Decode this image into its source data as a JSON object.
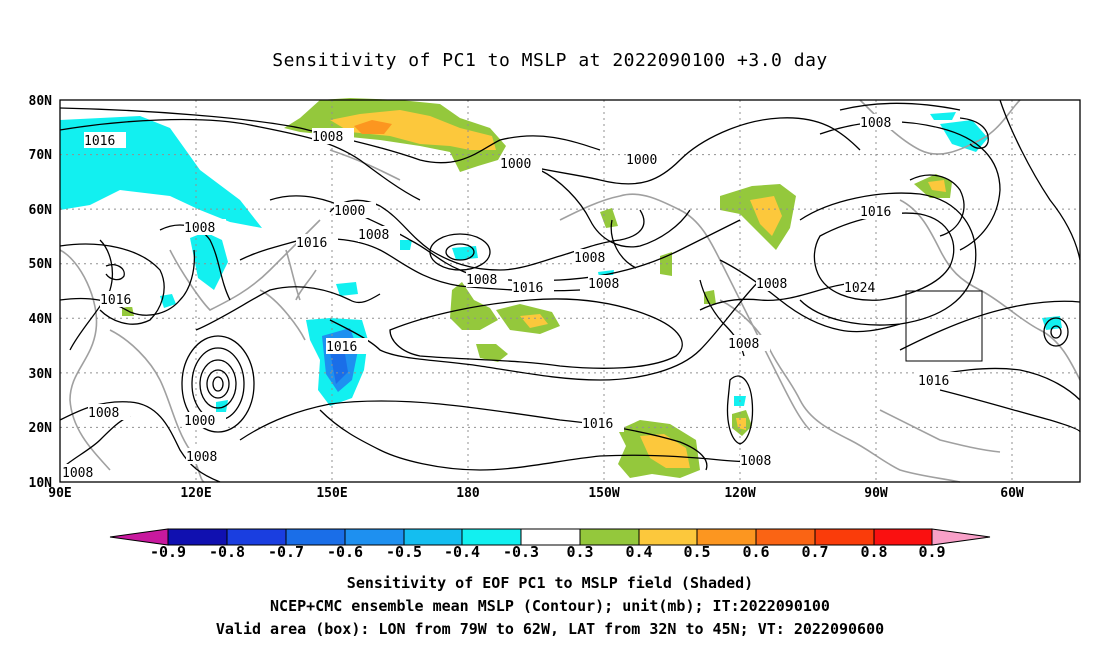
{
  "title": "Sensitivity of PC1 to MSLP at 2022090100 +3.0 day",
  "lat_labels": [
    "80N",
    "70N",
    "60N",
    "50N",
    "40N",
    "30N",
    "20N",
    "10N"
  ],
  "lon_labels": [
    "90E",
    "120E",
    "150E",
    "180",
    "150W",
    "120W",
    "90W",
    "60W"
  ],
  "contour_labels": [
    "1016",
    "1008",
    "1000",
    "1000",
    "1000",
    "1008",
    "1008",
    "1016",
    "1016",
    "1008",
    "1016",
    "1016",
    "1008",
    "1008",
    "1016",
    "1008",
    "1008",
    "1024",
    "1008",
    "1016",
    "1008",
    "1016",
    "1008",
    "1008",
    "1000",
    "1008",
    "1008"
  ],
  "colorbar": {
    "labels": [
      "-0.9",
      "-0.8",
      "-0.7",
      "-0.6",
      "-0.5",
      "-0.4",
      "-0.3",
      "0.3",
      "0.4",
      "0.5",
      "0.6",
      "0.7",
      "0.8",
      "0.9"
    ],
    "colors": [
      "#c8199e",
      "#1010b0",
      "#1a3ee0",
      "#1a6ee8",
      "#1e90f0",
      "#14bef0",
      "#12f0f0",
      "#ffffff",
      "#94c83c",
      "#fcc83c",
      "#fc9620",
      "#fa6414",
      "#fa3c0a",
      "#fa1010",
      "#f8a0c8"
    ]
  },
  "box": {
    "lon_w": 79,
    "lon_e": 62,
    "lat_s": 32,
    "lat_n": 45
  },
  "captions": {
    "line1": "Sensitivity of EOF PC1 to MSLP field (Shaded)",
    "line2": "NCEP+CMC ensemble mean MSLP (Contour); unit(mb); IT:2022090100",
    "line3": "Valid area (box): LON from 79W to 62W, LAT from 32N to 45N; VT: 2022090600"
  }
}
